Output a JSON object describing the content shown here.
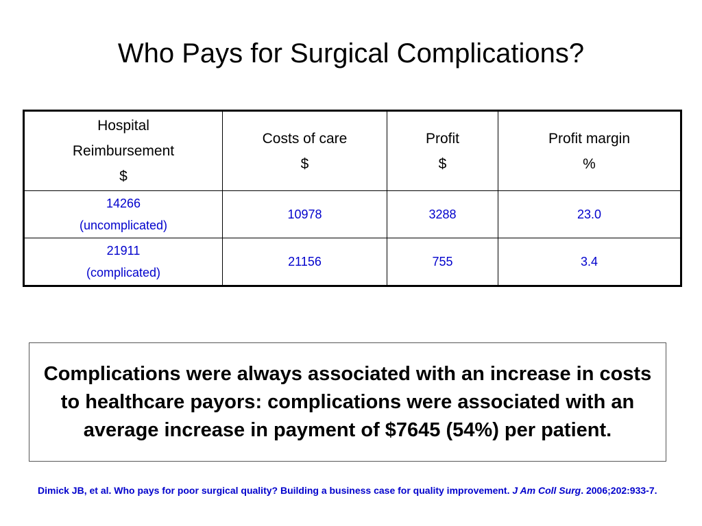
{
  "title": "Who Pays for Surgical Complications?",
  "table": {
    "headers": [
      {
        "lines": [
          "Hospital",
          "Reimbursement",
          "$"
        ]
      },
      {
        "lines": [
          "Costs of care",
          "$"
        ]
      },
      {
        "lines": [
          "Profit",
          "$"
        ]
      },
      {
        "lines": [
          "Profit margin",
          "%"
        ]
      }
    ],
    "rows": [
      {
        "reimbursement_value": "14266",
        "reimbursement_note": "(uncomplicated)",
        "costs": "10978",
        "profit": "3288",
        "margin": "23.0"
      },
      {
        "reimbursement_value": "21911",
        "reimbursement_note": "(complicated)",
        "costs": "21156",
        "profit": "755",
        "margin": "3.4"
      }
    ]
  },
  "callout": "Complications were always associated with an increase in costs to healthcare payors: complications were associated with an average increase in payment of $7645 (54%) per patient.",
  "citation": {
    "authors_title": "Dimick JB, et al. Who pays for poor surgical quality? Building a business case for quality improvement.",
    "journal": "J Am Coll Surg",
    "details": ". 2006;202:933-7."
  },
  "colors": {
    "text": "#000000",
    "accent_blue": "#0000cc",
    "border": "#000000"
  }
}
